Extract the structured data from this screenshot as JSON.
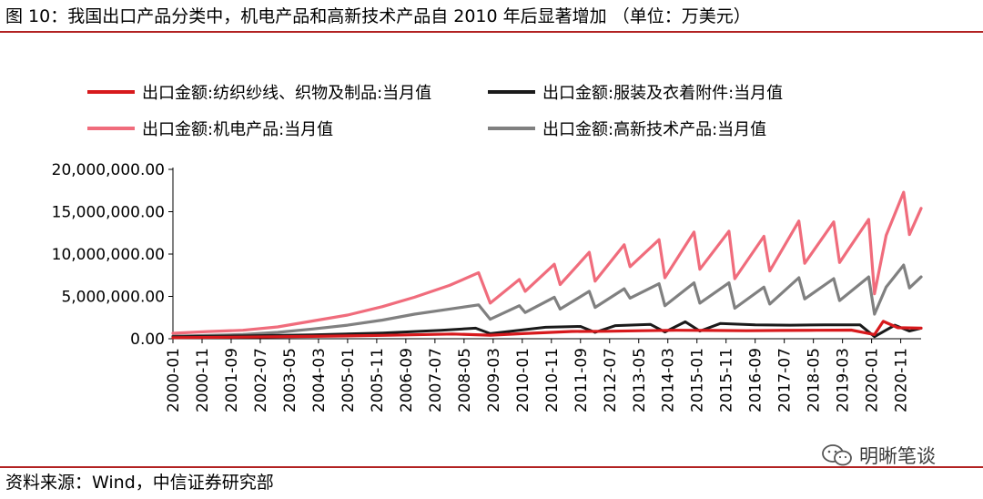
{
  "header": {
    "title": "图 10：我国出口产品分类中，机电产品和高新技术产品自 2010 年后显著增加 （单位：万美元）"
  },
  "footer": {
    "source": "资料来源：Wind，中信证券研究部",
    "watermark": "明晰笔谈",
    "watermark_icon": "wechat-icon"
  },
  "colors": {
    "rule": "#b22222"
  },
  "chart_data": {
    "type": "line",
    "title": "",
    "xlabel": "",
    "ylabel": "",
    "ylim": [
      0,
      20000000
    ],
    "yticks": [
      0,
      5000000,
      10000000,
      15000000,
      20000000
    ],
    "ytick_labels": [
      "0.00",
      "5,000,000.00",
      "10,000,000.00",
      "15,000,000.00",
      "20,000,000.00"
    ],
    "x_start": "2000-01",
    "x_end": "2021-06",
    "xtick_labels": [
      "2000-01",
      "2000-11",
      "2001-09",
      "2002-07",
      "2003-05",
      "2004-03",
      "2005-01",
      "2005-11",
      "2006-09",
      "2007-07",
      "2008-05",
      "2009-03",
      "2010-01",
      "2010-11",
      "2011-09",
      "2012-07",
      "2013-05",
      "2014-03",
      "2015-01",
      "2015-11",
      "2016-09",
      "2017-07",
      "2018-05",
      "2019-03",
      "2020-01",
      "2020-11"
    ],
    "grid": false,
    "legend_position": "top",
    "series": [
      {
        "name": "出口金额:纺织纱线、织物及制品:当月值",
        "color": "#d7191c",
        "points": [
          [
            "2000-01",
            130000
          ],
          [
            "2002-01",
            190000
          ],
          [
            "2004-01",
            280000
          ],
          [
            "2006-01",
            400000
          ],
          [
            "2008-01",
            560000
          ],
          [
            "2009-02",
            420000
          ],
          [
            "2010-01",
            600000
          ],
          [
            "2011-06",
            860000
          ],
          [
            "2012-06",
            880000
          ],
          [
            "2013-06",
            950000
          ],
          [
            "2014-06",
            1000000
          ],
          [
            "2015-06",
            980000
          ],
          [
            "2016-06",
            950000
          ],
          [
            "2017-06",
            980000
          ],
          [
            "2018-06",
            1000000
          ],
          [
            "2019-06",
            1020000
          ],
          [
            "2020-02",
            500000
          ],
          [
            "2020-05",
            2050000
          ],
          [
            "2020-10",
            1300000
          ],
          [
            "2021-06",
            1250000
          ]
        ]
      },
      {
        "name": "出口金额:服装及衣着附件:当月值",
        "color": "#1a1a1a",
        "points": [
          [
            "2000-01",
            250000
          ],
          [
            "2002-01",
            330000
          ],
          [
            "2004-01",
            450000
          ],
          [
            "2006-01",
            680000
          ],
          [
            "2007-09",
            1000000
          ],
          [
            "2008-09",
            1250000
          ],
          [
            "2009-02",
            600000
          ],
          [
            "2010-09",
            1350000
          ],
          [
            "2011-09",
            1450000
          ],
          [
            "2012-02",
            750000
          ],
          [
            "2012-09",
            1550000
          ],
          [
            "2013-09",
            1700000
          ],
          [
            "2014-02",
            800000
          ],
          [
            "2014-09",
            2000000
          ],
          [
            "2015-02",
            900000
          ],
          [
            "2015-09",
            1800000
          ],
          [
            "2016-09",
            1650000
          ],
          [
            "2017-09",
            1600000
          ],
          [
            "2018-09",
            1650000
          ],
          [
            "2019-09",
            1650000
          ],
          [
            "2020-02",
            250000
          ],
          [
            "2020-09",
            1600000
          ],
          [
            "2021-02",
            900000
          ],
          [
            "2021-06",
            1250000
          ]
        ]
      },
      {
        "name": "出口金额:机电产品:当月值",
        "color": "#f06c7c",
        "points": [
          [
            "2000-01",
            650000
          ],
          [
            "2001-01",
            850000
          ],
          [
            "2002-01",
            1000000
          ],
          [
            "2003-01",
            1400000
          ],
          [
            "2004-01",
            2100000
          ],
          [
            "2005-01",
            2800000
          ],
          [
            "2006-01",
            3800000
          ],
          [
            "2006-12",
            4900000
          ],
          [
            "2007-12",
            6300000
          ],
          [
            "2008-10",
            7800000
          ],
          [
            "2009-02",
            4200000
          ],
          [
            "2009-12",
            7000000
          ],
          [
            "2010-02",
            5600000
          ],
          [
            "2010-12",
            8800000
          ],
          [
            "2011-02",
            6400000
          ],
          [
            "2011-12",
            10200000
          ],
          [
            "2012-02",
            6800000
          ],
          [
            "2012-12",
            11100000
          ],
          [
            "2013-02",
            8500000
          ],
          [
            "2013-12",
            11700000
          ],
          [
            "2014-02",
            7200000
          ],
          [
            "2014-12",
            12600000
          ],
          [
            "2015-02",
            8200000
          ],
          [
            "2015-12",
            12700000
          ],
          [
            "2016-02",
            7100000
          ],
          [
            "2016-12",
            12100000
          ],
          [
            "2017-02",
            8000000
          ],
          [
            "2017-12",
            13900000
          ],
          [
            "2018-02",
            8900000
          ],
          [
            "2018-12",
            13800000
          ],
          [
            "2019-02",
            9000000
          ],
          [
            "2019-12",
            14100000
          ],
          [
            "2020-02",
            5300000
          ],
          [
            "2020-06",
            12200000
          ],
          [
            "2020-12",
            17300000
          ],
          [
            "2021-02",
            12300000
          ],
          [
            "2021-06",
            15400000
          ]
        ]
      },
      {
        "name": "出口金额:高新技术产品:当月值",
        "color": "#808080",
        "points": [
          [
            "2000-01",
            300000
          ],
          [
            "2001-01",
            400000
          ],
          [
            "2002-01",
            500000
          ],
          [
            "2003-01",
            750000
          ],
          [
            "2004-01",
            1150000
          ],
          [
            "2005-01",
            1600000
          ],
          [
            "2006-01",
            2200000
          ],
          [
            "2006-12",
            2900000
          ],
          [
            "2007-12",
            3500000
          ],
          [
            "2008-10",
            4000000
          ],
          [
            "2009-02",
            2300000
          ],
          [
            "2009-12",
            3900000
          ],
          [
            "2010-02",
            3100000
          ],
          [
            "2010-12",
            4900000
          ],
          [
            "2011-02",
            3500000
          ],
          [
            "2011-12",
            5600000
          ],
          [
            "2012-02",
            3700000
          ],
          [
            "2012-12",
            5900000
          ],
          [
            "2013-02",
            4800000
          ],
          [
            "2013-12",
            6500000
          ],
          [
            "2014-02",
            3900000
          ],
          [
            "2014-12",
            6600000
          ],
          [
            "2015-02",
            4200000
          ],
          [
            "2015-12",
            6600000
          ],
          [
            "2016-02",
            3600000
          ],
          [
            "2016-12",
            6100000
          ],
          [
            "2017-02",
            4100000
          ],
          [
            "2017-12",
            7200000
          ],
          [
            "2018-02",
            4700000
          ],
          [
            "2018-12",
            7100000
          ],
          [
            "2019-02",
            4500000
          ],
          [
            "2019-12",
            7300000
          ],
          [
            "2020-02",
            2900000
          ],
          [
            "2020-06",
            6100000
          ],
          [
            "2020-12",
            8700000
          ],
          [
            "2021-02",
            6000000
          ],
          [
            "2021-06",
            7300000
          ]
        ]
      }
    ]
  }
}
